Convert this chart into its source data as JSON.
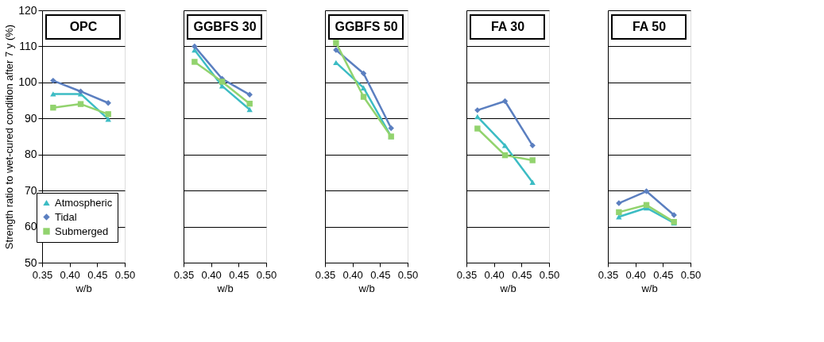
{
  "chart_data": [
    {
      "type": "line",
      "title": "OPC",
      "xlabel": "w/b",
      "ylabel": "Strength ratio to wet-cured condition after 7 y (%)",
      "x": [
        0.37,
        0.42,
        0.47
      ],
      "xlim": [
        0.35,
        0.5
      ],
      "xticks": [
        {
          "value": 0.35,
          "label": "0.35"
        },
        {
          "value": 0.4,
          "label": "0.40"
        },
        {
          "value": 0.45,
          "label": "0.45"
        },
        {
          "value": 0.5,
          "label": "0.50"
        }
      ],
      "ylim": [
        50,
        120
      ],
      "yticks": [
        50,
        60,
        70,
        80,
        90,
        100,
        110,
        120
      ],
      "grid": "y",
      "legend": "bottom left",
      "series": [
        {
          "name": "Atmospheric",
          "color": "#3cbcc4",
          "marker": "triangle",
          "values": [
            96.8,
            96.8,
            89.8
          ]
        },
        {
          "name": "Tidal",
          "color": "#5b7fc0",
          "marker": "diamond",
          "values": [
            100.5,
            97.5,
            94.3
          ]
        },
        {
          "name": "Submerged",
          "color": "#92d36e",
          "marker": "square",
          "values": [
            93,
            94,
            91.2
          ]
        }
      ]
    },
    {
      "type": "line",
      "title": "GGBFS 30",
      "xlabel": "w/b",
      "x": [
        0.37,
        0.42,
        0.47
      ],
      "xlim": [
        0.35,
        0.5
      ],
      "xticks": [
        {
          "value": 0.35,
          "label": "0.35"
        },
        {
          "value": 0.4,
          "label": "0.40"
        },
        {
          "value": 0.45,
          "label": "0.45"
        },
        {
          "value": 0.5,
          "label": "0.50"
        }
      ],
      "ylim": [
        50,
        120
      ],
      "yticks": [
        50,
        60,
        70,
        80,
        90,
        100,
        110,
        120
      ],
      "grid": "y",
      "tick_labels": "x",
      "series": [
        {
          "name": "Atmospheric",
          "color": "#3cbcc4",
          "marker": "triangle",
          "values": [
            109,
            99,
            92.5
          ]
        },
        {
          "name": "Tidal",
          "color": "#5b7fc0",
          "marker": "diamond",
          "values": [
            110,
            101,
            96.6
          ]
        },
        {
          "name": "Submerged",
          "color": "#92d36e",
          "marker": "square",
          "values": [
            105.7,
            100.2,
            94.1
          ]
        }
      ]
    },
    {
      "type": "line",
      "title": "GGBFS 50",
      "xlabel": "w/b",
      "x": [
        0.37,
        0.42,
        0.47
      ],
      "xlim": [
        0.35,
        0.5
      ],
      "xticks": [
        {
          "value": 0.35,
          "label": "0.35"
        },
        {
          "value": 0.4,
          "label": "0.40"
        },
        {
          "value": 0.45,
          "label": "0.45"
        },
        {
          "value": 0.5,
          "label": "0.50"
        }
      ],
      "ylim": [
        50,
        120
      ],
      "yticks": [
        50,
        60,
        70,
        80,
        90,
        100,
        110,
        120
      ],
      "grid": "y",
      "tick_labels": "x",
      "series": [
        {
          "name": "Atmospheric",
          "color": "#3cbcc4",
          "marker": "triangle",
          "values": [
            105.5,
            98.5,
            85
          ]
        },
        {
          "name": "Tidal",
          "color": "#5b7fc0",
          "marker": "diamond",
          "values": [
            109,
            102.5,
            87.3
          ]
        },
        {
          "name": "Submerged",
          "color": "#92d36e",
          "marker": "square",
          "values": [
            111,
            96,
            85
          ]
        }
      ]
    },
    {
      "type": "line",
      "title": "FA 30",
      "xlabel": "w/b",
      "x": [
        0.37,
        0.42,
        0.47
      ],
      "xlim": [
        0.35,
        0.5
      ],
      "xticks": [
        {
          "value": 0.35,
          "label": "0.35"
        },
        {
          "value": 0.4,
          "label": "0.40"
        },
        {
          "value": 0.45,
          "label": "0.45"
        },
        {
          "value": 0.5,
          "label": "0.50"
        }
      ],
      "ylim": [
        50,
        120
      ],
      "yticks": [
        50,
        60,
        70,
        80,
        90,
        100,
        110,
        120
      ],
      "grid": "y",
      "tick_labels": "x",
      "series": [
        {
          "name": "Atmospheric",
          "color": "#3cbcc4",
          "marker": "triangle",
          "values": [
            90.5,
            82.5,
            72.3
          ]
        },
        {
          "name": "Tidal",
          "color": "#5b7fc0",
          "marker": "diamond",
          "values": [
            92.3,
            94.8,
            82.5
          ]
        },
        {
          "name": "Submerged",
          "color": "#92d36e",
          "marker": "square",
          "values": [
            87.2,
            79.8,
            78.4
          ]
        }
      ]
    },
    {
      "type": "line",
      "title": "FA 50",
      "xlabel": "w/b",
      "x": [
        0.37,
        0.42,
        0.47
      ],
      "xlim": [
        0.35,
        0.5
      ],
      "xticks": [
        {
          "value": 0.35,
          "label": "0.35"
        },
        {
          "value": 0.4,
          "label": "0.40"
        },
        {
          "value": 0.45,
          "label": "0.45"
        },
        {
          "value": 0.5,
          "label": "0.50"
        }
      ],
      "ylim": [
        50,
        120
      ],
      "yticks": [
        50,
        60,
        70,
        80,
        90,
        100,
        110,
        120
      ],
      "grid": "y",
      "tick_labels": "x",
      "series": [
        {
          "name": "Atmospheric",
          "color": "#3cbcc4",
          "marker": "triangle",
          "values": [
            62.7,
            65.2,
            61
          ]
        },
        {
          "name": "Tidal",
          "color": "#5b7fc0",
          "marker": "diamond",
          "values": [
            66.5,
            69.8,
            63.2
          ]
        },
        {
          "name": "Submerged",
          "color": "#92d36e",
          "marker": "square",
          "values": [
            64,
            66,
            61.3
          ]
        }
      ]
    }
  ]
}
